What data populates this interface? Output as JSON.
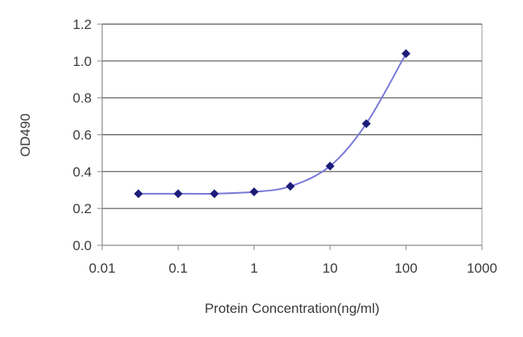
{
  "chart_data": {
    "type": "line",
    "title": "",
    "xlabel": "Protein Concentration(ng/ml)",
    "ylabel": "OD490",
    "x_scale": "log",
    "xlim": [
      0.01,
      1000
    ],
    "ylim": [
      0.0,
      1.2
    ],
    "x_ticks": [
      "0.01",
      "0.1",
      "1",
      "10",
      "100",
      "1000"
    ],
    "y_ticks": [
      "0.0",
      "0.2",
      "0.4",
      "0.6",
      "0.8",
      "1.0",
      "1.2"
    ],
    "grid": "horizontal",
    "legend": "none",
    "series": [
      {
        "x": [
          0.03,
          0.1,
          0.3,
          1,
          3,
          10,
          30,
          100
        ],
        "y": [
          0.28,
          0.28,
          0.28,
          0.29,
          0.32,
          0.43,
          0.66,
          1.04
        ]
      }
    ],
    "colors": {
      "marker": "#1c1c7a",
      "line": "#7878d8",
      "grid": "#555555",
      "axis": "#888888"
    }
  }
}
